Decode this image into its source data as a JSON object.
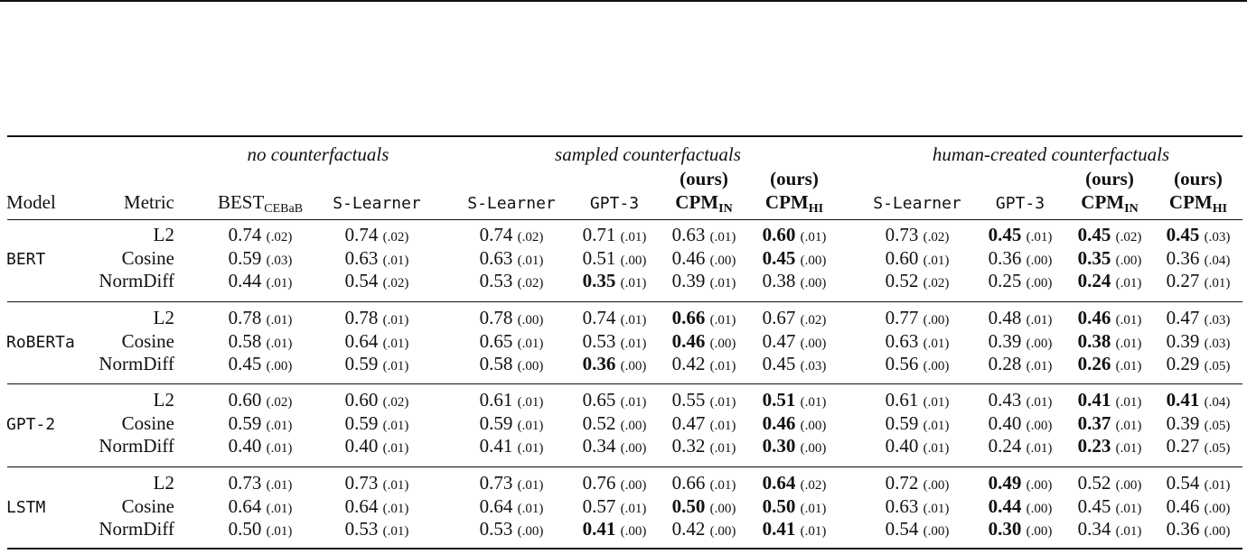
{
  "groups": {
    "none": "no counterfactuals",
    "sampled": "sampled counterfactuals",
    "human": "human-created counterfactuals"
  },
  "headers": {
    "model": "Model",
    "metric": "Metric",
    "best_main": "BEST",
    "best_sub": "CEBaB",
    "slearner": "S-Learner",
    "gpt3": "GPT-3",
    "ours": "(ours)",
    "cpm": "CPM",
    "cpm_in_sub": "IN",
    "cpm_hi_sub": "HI"
  },
  "models": [
    {
      "name": "BERT",
      "rows": [
        {
          "metric": "L2",
          "cells": [
            [
              "0.74",
              "(.02)",
              0
            ],
            [
              "0.74",
              "(.02)",
              0
            ],
            [
              "0.74",
              "(.02)",
              0
            ],
            [
              "0.71",
              "(.01)",
              0
            ],
            [
              "0.63",
              "(.01)",
              0
            ],
            [
              "0.60",
              "(.01)",
              1
            ],
            [
              "0.73",
              "(.02)",
              0
            ],
            [
              "0.45",
              "(.01)",
              1
            ],
            [
              "0.45",
              "(.02)",
              1
            ],
            [
              "0.45",
              "(.03)",
              1
            ]
          ]
        },
        {
          "metric": "Cosine",
          "cells": [
            [
              "0.59",
              "(.03)",
              0
            ],
            [
              "0.63",
              "(.01)",
              0
            ],
            [
              "0.63",
              "(.01)",
              0
            ],
            [
              "0.51",
              "(.00)",
              0
            ],
            [
              "0.46",
              "(.00)",
              0
            ],
            [
              "0.45",
              "(.00)",
              1
            ],
            [
              "0.60",
              "(.01)",
              0
            ],
            [
              "0.36",
              "(.00)",
              0
            ],
            [
              "0.35",
              "(.00)",
              1
            ],
            [
              "0.36",
              "(.04)",
              0
            ]
          ]
        },
        {
          "metric": "NormDiff",
          "cells": [
            [
              "0.44",
              "(.01)",
              0
            ],
            [
              "0.54",
              "(.02)",
              0
            ],
            [
              "0.53",
              "(.02)",
              0
            ],
            [
              "0.35",
              "(.01)",
              1
            ],
            [
              "0.39",
              "(.01)",
              0
            ],
            [
              "0.38",
              "(.00)",
              0
            ],
            [
              "0.52",
              "(.02)",
              0
            ],
            [
              "0.25",
              "(.00)",
              0
            ],
            [
              "0.24",
              "(.01)",
              1
            ],
            [
              "0.27",
              "(.01)",
              0
            ]
          ]
        }
      ]
    },
    {
      "name": "RoBERTa",
      "rows": [
        {
          "metric": "L2",
          "cells": [
            [
              "0.78",
              "(.01)",
              0
            ],
            [
              "0.78",
              "(.01)",
              0
            ],
            [
              "0.78",
              "(.00)",
              0
            ],
            [
              "0.74",
              "(.01)",
              0
            ],
            [
              "0.66",
              "(.01)",
              1
            ],
            [
              "0.67",
              "(.02)",
              0
            ],
            [
              "0.77",
              "(.00)",
              0
            ],
            [
              "0.48",
              "(.01)",
              0
            ],
            [
              "0.46",
              "(.01)",
              1
            ],
            [
              "0.47",
              "(.03)",
              0
            ]
          ]
        },
        {
          "metric": "Cosine",
          "cells": [
            [
              "0.58",
              "(.01)",
              0
            ],
            [
              "0.64",
              "(.01)",
              0
            ],
            [
              "0.65",
              "(.01)",
              0
            ],
            [
              "0.53",
              "(.01)",
              0
            ],
            [
              "0.46",
              "(.00)",
              1
            ],
            [
              "0.47",
              "(.00)",
              0
            ],
            [
              "0.63",
              "(.01)",
              0
            ],
            [
              "0.39",
              "(.00)",
              0
            ],
            [
              "0.38",
              "(.01)",
              1
            ],
            [
              "0.39",
              "(.03)",
              0
            ]
          ]
        },
        {
          "metric": "NormDiff",
          "cells": [
            [
              "0.45",
              "(.00)",
              0
            ],
            [
              "0.59",
              "(.01)",
              0
            ],
            [
              "0.58",
              "(.00)",
              0
            ],
            [
              "0.36",
              "(.00)",
              1
            ],
            [
              "0.42",
              "(.01)",
              0
            ],
            [
              "0.45",
              "(.03)",
              0
            ],
            [
              "0.56",
              "(.00)",
              0
            ],
            [
              "0.28",
              "(.01)",
              0
            ],
            [
              "0.26",
              "(.01)",
              1
            ],
            [
              "0.29",
              "(.05)",
              0
            ]
          ]
        }
      ]
    },
    {
      "name": "GPT-2",
      "rows": [
        {
          "metric": "L2",
          "cells": [
            [
              "0.60",
              "(.02)",
              0
            ],
            [
              "0.60",
              "(.02)",
              0
            ],
            [
              "0.61",
              "(.01)",
              0
            ],
            [
              "0.65",
              "(.01)",
              0
            ],
            [
              "0.55",
              "(.01)",
              0
            ],
            [
              "0.51",
              "(.01)",
              1
            ],
            [
              "0.61",
              "(.01)",
              0
            ],
            [
              "0.43",
              "(.01)",
              0
            ],
            [
              "0.41",
              "(.01)",
              1
            ],
            [
              "0.41",
              "(.04)",
              1
            ]
          ]
        },
        {
          "metric": "Cosine",
          "cells": [
            [
              "0.59",
              "(.01)",
              0
            ],
            [
              "0.59",
              "(.01)",
              0
            ],
            [
              "0.59",
              "(.01)",
              0
            ],
            [
              "0.52",
              "(.00)",
              0
            ],
            [
              "0.47",
              "(.01)",
              0
            ],
            [
              "0.46",
              "(.00)",
              1
            ],
            [
              "0.59",
              "(.01)",
              0
            ],
            [
              "0.40",
              "(.00)",
              0
            ],
            [
              "0.37",
              "(.01)",
              1
            ],
            [
              "0.39",
              "(.05)",
              0
            ]
          ]
        },
        {
          "metric": "NormDiff",
          "cells": [
            [
              "0.40",
              "(.01)",
              0
            ],
            [
              "0.40",
              "(.01)",
              0
            ],
            [
              "0.41",
              "(.01)",
              0
            ],
            [
              "0.34",
              "(.00)",
              0
            ],
            [
              "0.32",
              "(.01)",
              0
            ],
            [
              "0.30",
              "(.00)",
              1
            ],
            [
              "0.40",
              "(.01)",
              0
            ],
            [
              "0.24",
              "(.01)",
              0
            ],
            [
              "0.23",
              "(.01)",
              1
            ],
            [
              "0.27",
              "(.05)",
              0
            ]
          ]
        }
      ]
    },
    {
      "name": "LSTM",
      "rows": [
        {
          "metric": "L2",
          "cells": [
            [
              "0.73",
              "(.01)",
              0
            ],
            [
              "0.73",
              "(.01)",
              0
            ],
            [
              "0.73",
              "(.01)",
              0
            ],
            [
              "0.76",
              "(.00)",
              0
            ],
            [
              "0.66",
              "(.01)",
              0
            ],
            [
              "0.64",
              "(.02)",
              1
            ],
            [
              "0.72",
              "(.00)",
              0
            ],
            [
              "0.49",
              "(.00)",
              1
            ],
            [
              "0.52",
              "(.00)",
              0
            ],
            [
              "0.54",
              "(.01)",
              0
            ]
          ]
        },
        {
          "metric": "Cosine",
          "cells": [
            [
              "0.64",
              "(.01)",
              0
            ],
            [
              "0.64",
              "(.01)",
              0
            ],
            [
              "0.64",
              "(.01)",
              0
            ],
            [
              "0.57",
              "(.01)",
              0
            ],
            [
              "0.50",
              "(.00)",
              1
            ],
            [
              "0.50",
              "(.01)",
              1
            ],
            [
              "0.63",
              "(.01)",
              0
            ],
            [
              "0.44",
              "(.00)",
              1
            ],
            [
              "0.45",
              "(.01)",
              0
            ],
            [
              "0.46",
              "(.00)",
              0
            ]
          ]
        },
        {
          "metric": "NormDiff",
          "cells": [
            [
              "0.50",
              "(.01)",
              0
            ],
            [
              "0.53",
              "(.01)",
              0
            ],
            [
              "0.53",
              "(.00)",
              0
            ],
            [
              "0.41",
              "(.00)",
              1
            ],
            [
              "0.42",
              "(.00)",
              0
            ],
            [
              "0.41",
              "(.01)",
              1
            ],
            [
              "0.54",
              "(.00)",
              0
            ],
            [
              "0.30",
              "(.00)",
              1
            ],
            [
              "0.34",
              "(.01)",
              0
            ],
            [
              "0.36",
              "(.00)",
              0
            ]
          ]
        }
      ]
    }
  ]
}
